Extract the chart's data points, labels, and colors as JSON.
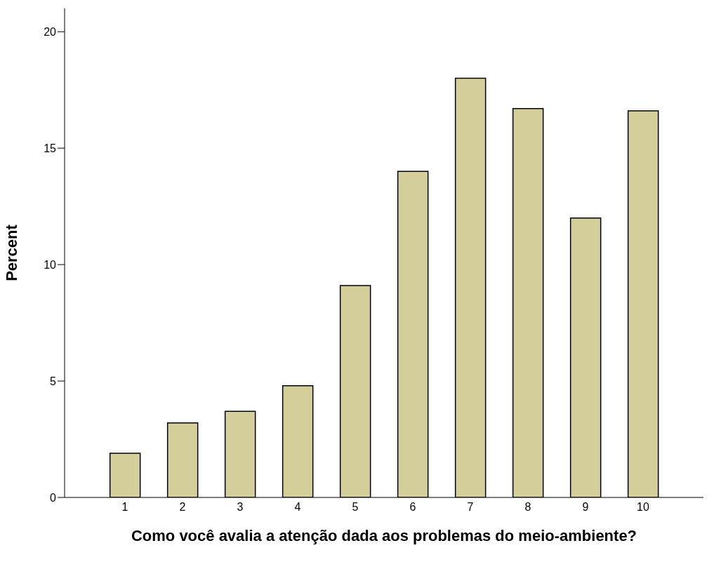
{
  "chart_data": {
    "type": "bar",
    "xlabel": "Como você avalia a atenção dada aos problemas do meio-ambiente?",
    "ylabel": "Percent",
    "categories": [
      "1",
      "2",
      "3",
      "4",
      "5",
      "6",
      "7",
      "8",
      "9",
      "10"
    ],
    "values": [
      1.9,
      3.2,
      3.7,
      4.8,
      9.1,
      14.0,
      18.0,
      16.7,
      12.0,
      16.6
    ],
    "color": "#d4cf9a",
    "ylim": [
      0,
      21
    ],
    "yticks": [
      0,
      5,
      10,
      15,
      20
    ],
    "grid": false,
    "legend": false
  }
}
